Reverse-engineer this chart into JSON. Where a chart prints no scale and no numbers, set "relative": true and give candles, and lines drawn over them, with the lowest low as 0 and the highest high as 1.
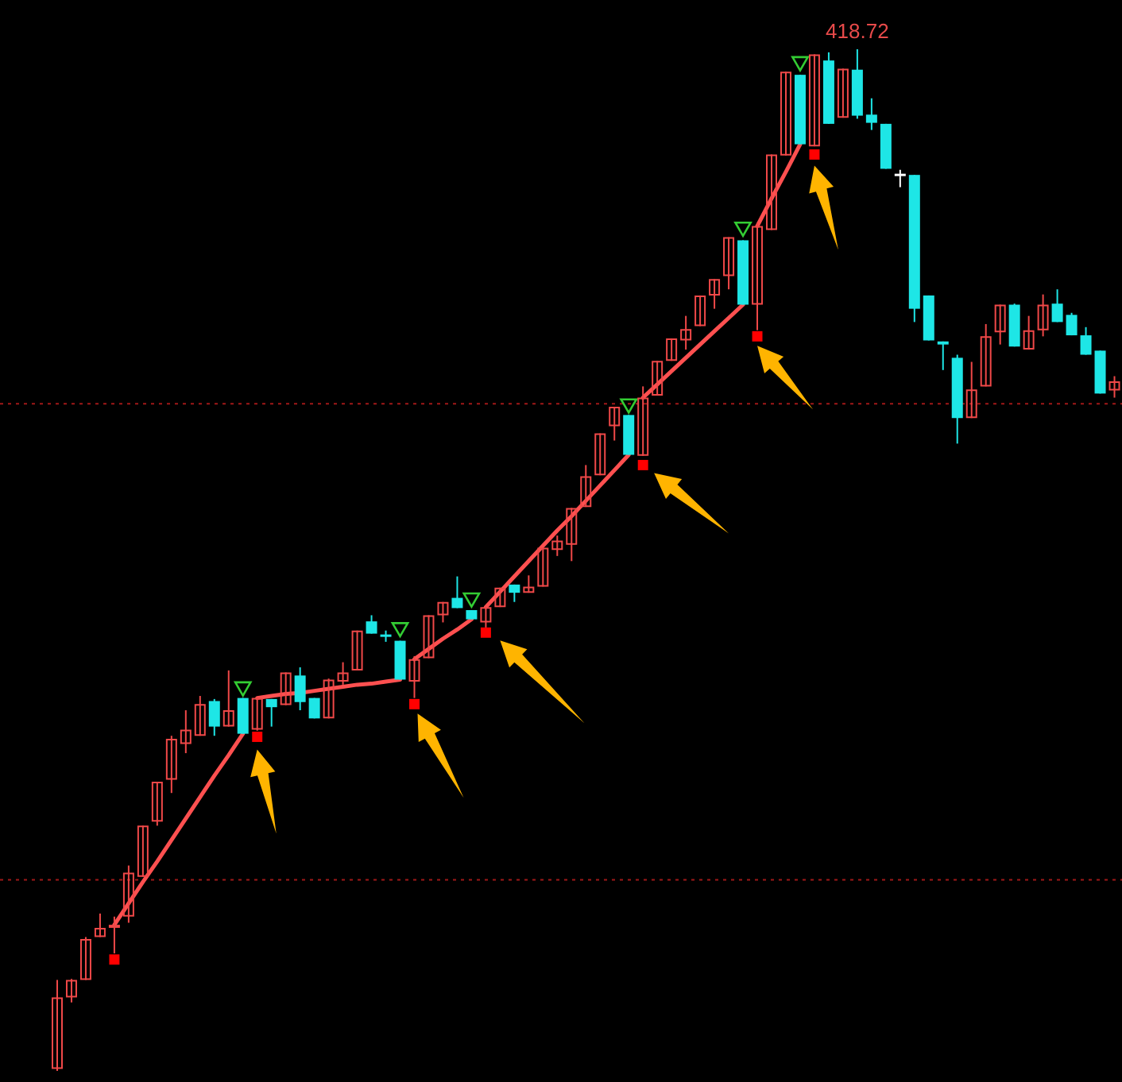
{
  "chart_data": {
    "type": "candlestick",
    "relative": true,
    "categories": [
      null,
      null,
      null,
      null,
      null,
      null,
      null,
      null,
      null,
      null,
      null,
      null,
      null,
      null,
      null,
      null,
      null,
      null,
      null,
      null,
      null,
      null,
      null,
      null,
      null,
      null,
      null,
      null,
      null,
      null,
      null,
      null,
      null,
      null,
      null,
      null,
      null,
      null,
      null,
      null,
      null,
      null,
      null,
      null,
      null,
      null,
      null,
      null,
      null,
      null,
      null,
      null,
      null,
      null,
      null,
      null,
      null,
      null,
      null,
      null,
      null,
      null,
      null,
      null,
      null,
      null,
      null,
      null,
      null,
      null,
      null,
      null,
      null,
      null,
      null
    ],
    "ohlc": [
      [
        0.002,
        0.089,
        0,
        0.072
      ],
      [
        0.072,
        0.09,
        0.067,
        0.089
      ],
      [
        0.089,
        0.131,
        0.089,
        0.129
      ],
      [
        0.131,
        0.154,
        0.131,
        0.14
      ],
      [
        0.14,
        0.151,
        0.115,
        0.143
      ],
      [
        0.151,
        0.201,
        0.145,
        0.194
      ],
      [
        0.19,
        0.24,
        0.19,
        0.24
      ],
      [
        0.244,
        0.283,
        0.24,
        0.283
      ],
      [
        0.285,
        0.328,
        0.272,
        0.325
      ],
      [
        0.32,
        0.353,
        0.311,
        0.334
      ],
      [
        0.328,
        0.367,
        0.328,
        0.359
      ],
      [
        0.362,
        0.364,
        0.328,
        0.337
      ],
      [
        0.337,
        0.392,
        0.337,
        0.353
      ],
      [
        0.365,
        0.365,
        0.33,
        0.33
      ],
      [
        0.334,
        0.365,
        0.333,
        0.365
      ],
      [
        0.364,
        0.364,
        0.337,
        0.356
      ],
      [
        0.358,
        0.39,
        0.358,
        0.39
      ],
      [
        0.387,
        0.395,
        0.353,
        0.361
      ],
      [
        0.365,
        0.365,
        0.345,
        0.345
      ],
      [
        0.345,
        0.384,
        0.345,
        0.383
      ],
      [
        0.381,
        0.4,
        0.378,
        0.39
      ],
      [
        0.392,
        0.431,
        0.392,
        0.431
      ],
      [
        0.44,
        0.446,
        0.428,
        0.428
      ],
      [
        0.426,
        0.431,
        0.42,
        0.426
      ],
      [
        0.421,
        0.421,
        0.383,
        0.383
      ],
      [
        0.381,
        0.406,
        0.365,
        0.403
      ],
      [
        0.404,
        0.446,
        0.404,
        0.446
      ],
      [
        0.446,
        0.459,
        0.439,
        0.459
      ],
      [
        0.463,
        0.484,
        0.453,
        0.453
      ],
      [
        0.451,
        0.451,
        0.442,
        0.442
      ],
      [
        0.439,
        0.454,
        0.434,
        0.454
      ],
      [
        0.454,
        0.473,
        0.454,
        0.473
      ],
      [
        0.476,
        0.476,
        0.459,
        0.468
      ],
      [
        0.468,
        0.485,
        0.468,
        0.474
      ],
      [
        0.474,
        0.512,
        0.474,
        0.512
      ],
      [
        0.51,
        0.524,
        0.504,
        0.519
      ],
      [
        0.515,
        0.551,
        0.499,
        0.551
      ],
      [
        0.552,
        0.593,
        0.552,
        0.582
      ],
      [
        0.583,
        0.624,
        0.583,
        0.624
      ],
      [
        0.631,
        0.65,
        0.617,
        0.65
      ],
      [
        0.642,
        0.642,
        0.603,
        0.603
      ],
      [
        0.602,
        0.67,
        0.602,
        0.659
      ],
      [
        0.661,
        0.695,
        0.661,
        0.695
      ],
      [
        0.695,
        0.717,
        0.695,
        0.717
      ],
      [
        0.715,
        0.739,
        0.706,
        0.726
      ],
      [
        0.729,
        0.759,
        0.729,
        0.759
      ],
      [
        0.759,
        0.775,
        0.746,
        0.775
      ],
      [
        0.778,
        0.816,
        0.765,
        0.816
      ],
      [
        0.813,
        0.813,
        0.75,
        0.75
      ],
      [
        0.75,
        0.83,
        0.725,
        0.827
      ],
      [
        0.823,
        0.897,
        0.823,
        0.897
      ],
      [
        0.896,
        0.978,
        0.896,
        0.978
      ],
      [
        0.975,
        0.975,
        0.907,
        0.907
      ],
      [
        0.905,
        0.995,
        0.905,
        0.995
      ],
      [
        0.989,
        0.997,
        0.927,
        0.927
      ],
      [
        0.933,
        0.981,
        0.933,
        0.981
      ],
      [
        0.98,
        1,
        0.932,
        0.935
      ],
      [
        0.936,
        0.952,
        0.921,
        0.928
      ],
      [
        0.927,
        0.927,
        0.883,
        0.883
      ],
      [
        0.877,
        0.882,
        0.865,
        0.877
      ],
      [
        0.877,
        0.877,
        0.733,
        0.746
      ],
      [
        0.759,
        0.759,
        0.715,
        0.715
      ],
      [
        0.714,
        0.714,
        0.686,
        0.711
      ],
      [
        0.698,
        0.701,
        0.614,
        0.639
      ],
      [
        0.639,
        0.694,
        0.639,
        0.667
      ],
      [
        0.67,
        0.731,
        0.67,
        0.719
      ],
      [
        0.723,
        0.75,
        0.711,
        0.75
      ],
      [
        0.75,
        0.751,
        0.709,
        0.709
      ],
      [
        0.706,
        0.739,
        0.706,
        0.725
      ],
      [
        0.725,
        0.76,
        0.719,
        0.75
      ],
      [
        0.751,
        0.765,
        0.733,
        0.733
      ],
      [
        0.74,
        0.742,
        0.72,
        0.72
      ],
      [
        0.72,
        0.728,
        0.701,
        0.701
      ],
      [
        0.705,
        0.705,
        0.663,
        0.663
      ],
      [
        0.666,
        0.68,
        0.659,
        0.675
      ]
    ],
    "colors": [
      "#f04848",
      "#f04848",
      "#f04848",
      "#f04848",
      "#f04848",
      "#f04848",
      "#f04848",
      "#f04848",
      "#f04848",
      "#f04848",
      "#f04848",
      "#1ee6e6",
      "#f04848",
      "#1ee6e6",
      "#f04848",
      "#1ee6e6",
      "#f04848",
      "#1ee6e6",
      "#1ee6e6",
      "#f04848",
      "#f04848",
      "#f04848",
      "#1ee6e6",
      "#1ee6e6",
      "#1ee6e6",
      "#f04848",
      "#f04848",
      "#f04848",
      "#1ee6e6",
      "#1ee6e6",
      "#f04848",
      "#f04848",
      "#1ee6e6",
      "#f04848",
      "#f04848",
      "#f04848",
      "#f04848",
      "#f04848",
      "#f04848",
      "#f04848",
      "#1ee6e6",
      "#f04848",
      "#f04848",
      "#f04848",
      "#f04848",
      "#f04848",
      "#f04848",
      "#f04848",
      "#1ee6e6",
      "#f04848",
      "#f04848",
      "#f04848",
      "#1ee6e6",
      "#f04848",
      "#1ee6e6",
      "#f04848",
      "#1ee6e6",
      "#1ee6e6",
      "#1ee6e6",
      "#ffffff",
      "#1ee6e6",
      "#1ee6e6",
      "#1ee6e6",
      "#1ee6e6",
      "#f04848",
      "#f04848",
      "#f04848",
      "#1ee6e6",
      "#f04848",
      "#f04848",
      "#1ee6e6",
      "#1ee6e6",
      "#1ee6e6",
      "#1ee6e6",
      "#f04848"
    ],
    "series": [
      {
        "type": "line",
        "color": "#ff5050",
        "values": [
          null,
          null,
          null,
          null,
          0.143,
          0.164,
          0.185,
          0.205,
          0.226,
          0.247,
          0.268,
          0.289,
          0.309,
          0.33,
          null,
          null,
          null,
          null,
          null,
          null,
          null,
          null,
          null,
          null,
          null,
          0.403,
          0.413,
          0.423,
          0.432,
          0.442,
          null,
          null,
          null,
          null,
          null,
          null,
          null,
          null,
          null,
          null,
          null,
          0.659,
          0.672,
          0.685,
          0.698,
          0.711,
          0.724,
          0.737,
          0.75,
          null,
          null,
          null,
          null,
          null,
          null,
          null,
          null,
          null,
          null,
          null,
          null,
          null,
          null,
          null,
          null,
          null,
          null,
          null,
          null,
          null,
          null,
          null,
          null,
          null,
          null
        ]
      },
      {
        "type": "line",
        "color": "#ff5050",
        "values": [
          null,
          null,
          null,
          null,
          null,
          null,
          null,
          null,
          null,
          null,
          null,
          null,
          null,
          null,
          0.365,
          0.367,
          0.369,
          0.37,
          0.372,
          0.374,
          0.376,
          0.378,
          0.379,
          0.381,
          0.383,
          null,
          null,
          null,
          null,
          null,
          0.454,
          0.469,
          0.484,
          0.499,
          0.514,
          0.529,
          0.543,
          0.558,
          0.573,
          0.588,
          0.603,
          null,
          null,
          null,
          null,
          null,
          null,
          null,
          null,
          0.827,
          0.854,
          0.88,
          0.907,
          null,
          null,
          null,
          null,
          null,
          null,
          null,
          null,
          null,
          null,
          null,
          null,
          null,
          null,
          null,
          null,
          null,
          null,
          null,
          null,
          null,
          null
        ]
      },
      {
        "type": "scatter",
        "color": "#ff0000",
        "marker": "square",
        "values": [
          null,
          null,
          null,
          null,
          0.109,
          null,
          null,
          null,
          null,
          null,
          null,
          null,
          null,
          null,
          0.327,
          null,
          null,
          null,
          null,
          null,
          null,
          null,
          null,
          null,
          null,
          0.359,
          null,
          null,
          null,
          null,
          0.429,
          null,
          null,
          null,
          null,
          null,
          null,
          null,
          null,
          null,
          null,
          0.593,
          null,
          null,
          null,
          null,
          null,
          null,
          null,
          0.719,
          null,
          null,
          null,
          0.897,
          null,
          null,
          null,
          null,
          null,
          null,
          null,
          null,
          null,
          null,
          null,
          null,
          null,
          null,
          null,
          null,
          null,
          null,
          null,
          null,
          null
        ]
      },
      {
        "type": "scatter",
        "color": "#33cc33",
        "marker": "triangle",
        "values": [
          null,
          null,
          null,
          null,
          null,
          null,
          null,
          null,
          null,
          null,
          null,
          null,
          null,
          0.376,
          null,
          null,
          null,
          null,
          null,
          null,
          null,
          null,
          null,
          null,
          0.434,
          null,
          null,
          null,
          null,
          0.463,
          null,
          null,
          null,
          null,
          null,
          null,
          null,
          null,
          null,
          null,
          0.653,
          null,
          null,
          null,
          null,
          null,
          null,
          null,
          0.826,
          null,
          null,
          null,
          0.988,
          null,
          null,
          null,
          null,
          null,
          null,
          null,
          null,
          null,
          null,
          null,
          null,
          null,
          null,
          null,
          null,
          null,
          null,
          null,
          null,
          null,
          null
        ]
      }
    ],
    "ref_lines": [
      {
        "axis": "y",
        "value": 0.653,
        "color": "#a01818",
        "line_style": "dotted"
      },
      {
        "axis": "y",
        "value": 0.187,
        "color": "#a01818",
        "line_style": "dotted"
      }
    ],
    "annotations": [
      "418.72"
    ]
  }
}
